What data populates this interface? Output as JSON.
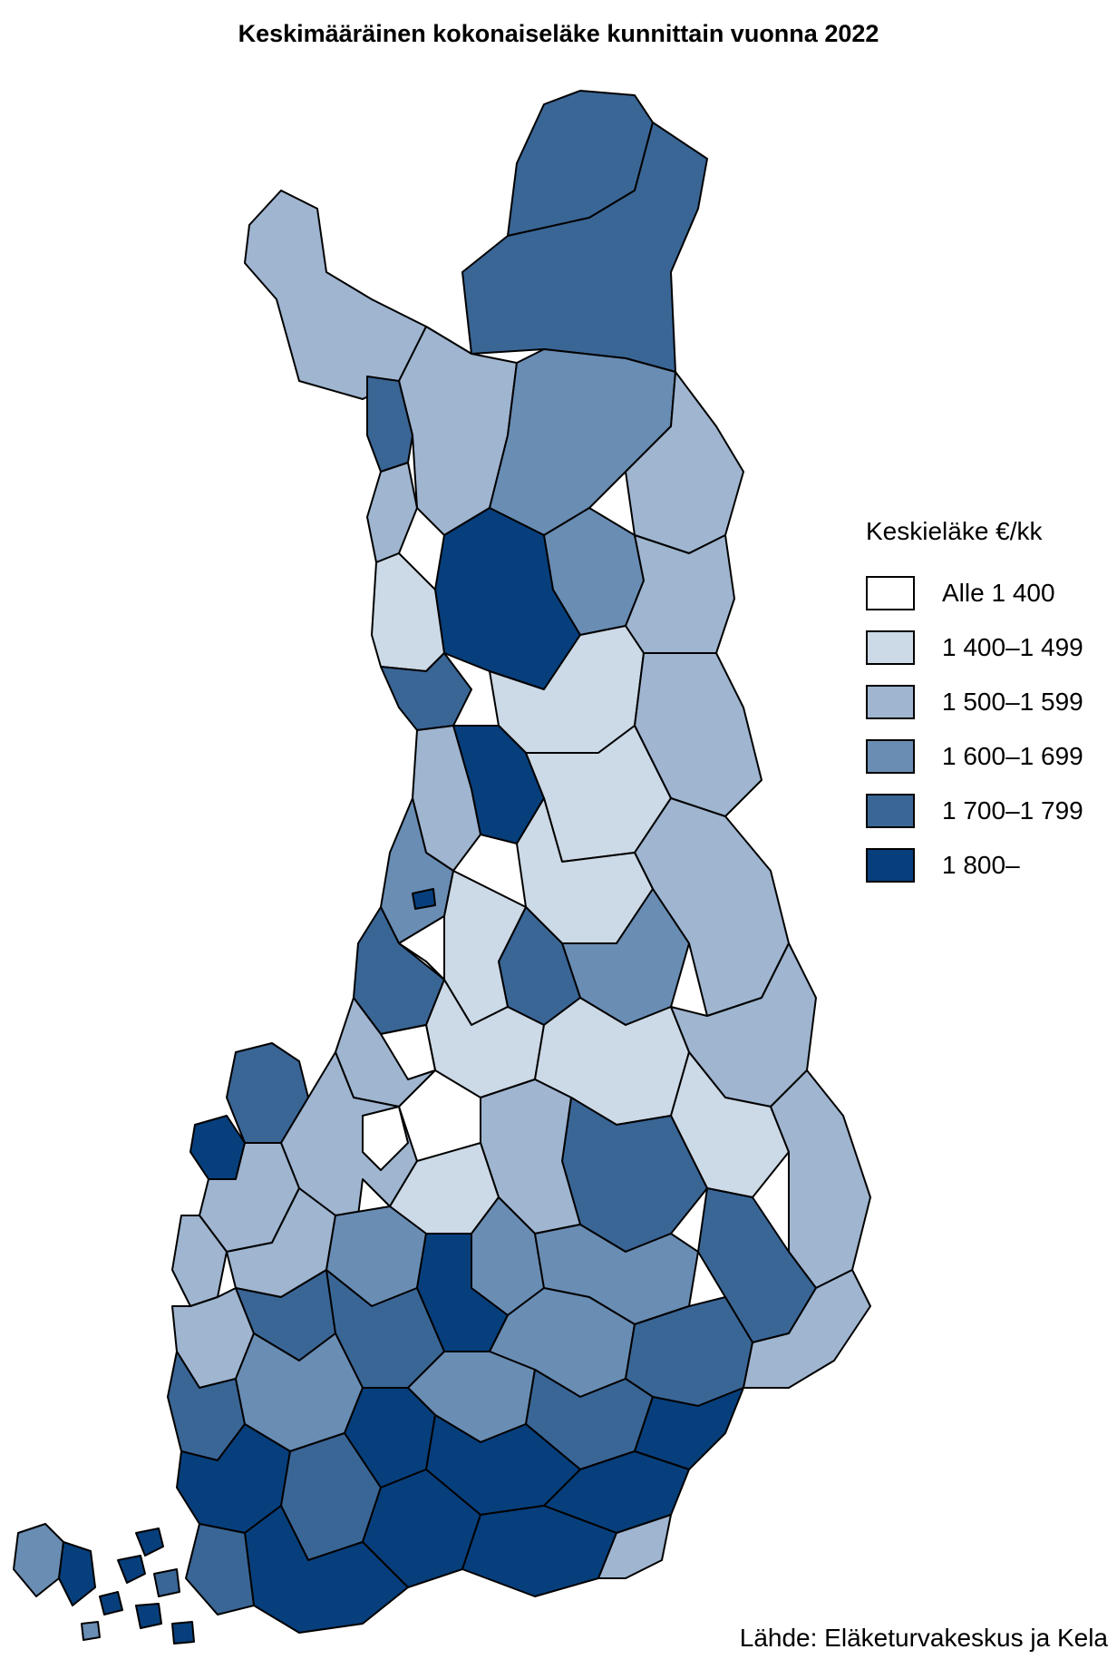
{
  "title": "Keskimääräinen kokonaiseläke kunnittain vuonna 2022",
  "source": "Lähde: Eläketurvakeskus ja Kela",
  "legend": {
    "title": "Keskieläke €/kk",
    "classes": [
      {
        "label": "Alle 1 400",
        "color": "#ffffff"
      },
      {
        "label": "1 400–1 499",
        "color": "#ccd9e6"
      },
      {
        "label": "1 500–1 599",
        "color": "#9fb5d0"
      },
      {
        "label": "1 600–1 699",
        "color": "#6a8db4"
      },
      {
        "label": "1 700–1 799",
        "color": "#3a6696"
      },
      {
        "label": "1 800–",
        "color": "#073f7c"
      }
    ]
  }
}
